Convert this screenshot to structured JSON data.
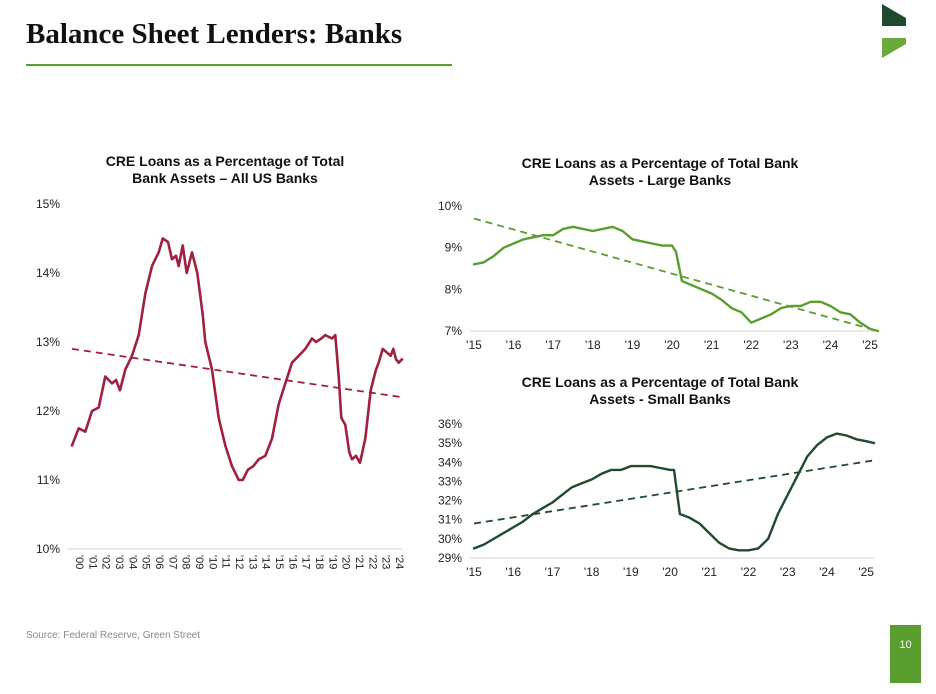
{
  "header": {
    "title": "Balance Sheet Lenders: Banks"
  },
  "colors": {
    "accent_green": "#5a9e2f",
    "logo_dark": "#1f4a2e",
    "logo_light": "#6aaa3a",
    "all_banks_line": "#a0203f",
    "large_banks_line": "#5a9e2f",
    "small_banks_line": "#1f4a2e"
  },
  "footer": {
    "source": "Source: Federal Reserve, Green Street",
    "page_number": "10"
  },
  "chart_data": [
    {
      "id": "all",
      "type": "line",
      "title_line1": "CRE Loans as a Percentage of Total",
      "title_line2": "Bank Assets – All US Banks",
      "xlabel": "",
      "ylabel": "",
      "xlim": [
        2000,
        2024.75
      ],
      "ylim": [
        10,
        15
      ],
      "y_ticks": [
        10,
        11,
        12,
        13,
        14,
        15
      ],
      "y_tick_labels": [
        "10%",
        "11%",
        "12%",
        "13%",
        "14%",
        "15%"
      ],
      "x_ticks": [
        2000,
        2001,
        2002,
        2003,
        2004,
        2005,
        2006,
        2007,
        2008,
        2009,
        2010,
        2011,
        2012,
        2013,
        2014,
        2015,
        2016,
        2017,
        2018,
        2019,
        2020,
        2021,
        2022,
        2023,
        2024
      ],
      "x_tick_labels": [
        "'00",
        "'01",
        "'02",
        "'03",
        "'04",
        "'05",
        "'06",
        "'07",
        "'08",
        "'09",
        "'10",
        "'11",
        "'12",
        "'13",
        "'14",
        "'15",
        "'16",
        "'17",
        "'18",
        "'19",
        "'20",
        "'21",
        "'22",
        "'23",
        "'24"
      ],
      "grid": false,
      "x_label_rotation": "vertical",
      "series": [
        {
          "name": "All US Banks",
          "color": "#a0203f",
          "x": [
            2000,
            2000.5,
            2001,
            2001.5,
            2002,
            2002.5,
            2003,
            2003.3,
            2003.6,
            2004,
            2004.5,
            2005,
            2005.5,
            2006,
            2006.5,
            2006.8,
            2007.2,
            2007.5,
            2007.8,
            2008,
            2008.3,
            2008.6,
            2009,
            2009.4,
            2009.8,
            2010,
            2010.5,
            2011,
            2011.5,
            2012,
            2012.5,
            2012.8,
            2013.2,
            2013.6,
            2014,
            2014.5,
            2015,
            2015.5,
            2016,
            2016.5,
            2017,
            2017.5,
            2018,
            2018.3,
            2018.7,
            2019,
            2019.5,
            2019.75,
            2020,
            2020.2,
            2020.5,
            2020.8,
            2021,
            2021.3,
            2021.6,
            2022,
            2022.4,
            2022.8,
            2023,
            2023.3,
            2023.6,
            2023.9,
            2024.1,
            2024.3,
            2024.5,
            2024.75
          ],
          "y": [
            11.5,
            11.75,
            11.7,
            12.0,
            12.05,
            12.5,
            12.4,
            12.45,
            12.3,
            12.6,
            12.8,
            13.1,
            13.7,
            14.1,
            14.3,
            14.5,
            14.45,
            14.2,
            14.25,
            14.1,
            14.4,
            14.0,
            14.3,
            14.0,
            13.4,
            13.0,
            12.6,
            11.9,
            11.5,
            11.2,
            11.0,
            11.0,
            11.15,
            11.2,
            11.3,
            11.35,
            11.6,
            12.1,
            12.4,
            12.7,
            12.8,
            12.9,
            13.05,
            13.0,
            13.05,
            13.1,
            13.05,
            13.1,
            12.5,
            11.9,
            11.8,
            11.4,
            11.3,
            11.35,
            11.25,
            11.6,
            12.3,
            12.6,
            12.7,
            12.9,
            12.85,
            12.8,
            12.9,
            12.75,
            12.7,
            12.75
          ]
        }
      ],
      "trendline": {
        "from": [
          2000,
          12.9
        ],
        "to": [
          2024.75,
          12.2
        ],
        "style": "dashed"
      }
    },
    {
      "id": "large",
      "type": "line",
      "title_line1": "CRE Loans as a Percentage of Total Bank",
      "title_line2": "Assets - Large Banks",
      "xlabel": "",
      "ylabel": "",
      "xlim": [
        2015,
        2025.2
      ],
      "ylim": [
        7,
        10
      ],
      "y_ticks": [
        7,
        8,
        9,
        10
      ],
      "y_tick_labels": [
        "7%",
        "8%",
        "9%",
        "10%"
      ],
      "x_ticks": [
        2015,
        2016,
        2017,
        2018,
        2019,
        2020,
        2021,
        2022,
        2023,
        2024,
        2025
      ],
      "x_tick_labels": [
        "'15",
        "'16",
        "'17",
        "'18",
        "'19",
        "'20",
        "'21",
        "'22",
        "'23",
        "'24",
        "'25"
      ],
      "grid": false,
      "series": [
        {
          "name": "Large Banks",
          "color": "#5a9e2f",
          "x": [
            2015,
            2015.25,
            2015.5,
            2015.75,
            2016,
            2016.25,
            2016.5,
            2016.75,
            2017,
            2017.25,
            2017.5,
            2017.75,
            2018,
            2018.25,
            2018.5,
            2018.75,
            2019,
            2019.25,
            2019.5,
            2019.75,
            2020,
            2020.1,
            2020.25,
            2020.5,
            2020.75,
            2021,
            2021.25,
            2021.5,
            2021.75,
            2022,
            2022.25,
            2022.5,
            2022.75,
            2023,
            2023.25,
            2023.5,
            2023.75,
            2024,
            2024.25,
            2024.5,
            2024.75,
            2025,
            2025.2
          ],
          "y": [
            8.6,
            8.65,
            8.8,
            9.0,
            9.1,
            9.2,
            9.25,
            9.3,
            9.3,
            9.45,
            9.5,
            9.45,
            9.4,
            9.45,
            9.5,
            9.4,
            9.2,
            9.15,
            9.1,
            9.05,
            9.05,
            8.9,
            8.2,
            8.1,
            8.0,
            7.9,
            7.75,
            7.55,
            7.45,
            7.2,
            7.3,
            7.4,
            7.55,
            7.6,
            7.6,
            7.7,
            7.7,
            7.6,
            7.45,
            7.4,
            7.2,
            7.05,
            7.0
          ]
        }
      ],
      "trendline": {
        "from": [
          2015,
          9.7
        ],
        "to": [
          2025.2,
          7.0
        ],
        "style": "dashed"
      }
    },
    {
      "id": "small",
      "type": "line",
      "title_line1": "CRE Loans as a Percentage of Total Bank",
      "title_line2": "Assets - Small Banks",
      "xlabel": "",
      "ylabel": "",
      "xlim": [
        2015,
        2025.2
      ],
      "ylim": [
        29,
        36
      ],
      "y_ticks": [
        29,
        30,
        31,
        32,
        33,
        34,
        35,
        36
      ],
      "y_tick_labels": [
        "29%",
        "30%",
        "31%",
        "32%",
        "33%",
        "34%",
        "35%",
        "36%"
      ],
      "x_ticks": [
        2015,
        2016,
        2017,
        2018,
        2019,
        2020,
        2021,
        2022,
        2023,
        2024,
        2025
      ],
      "x_tick_labels": [
        "'15",
        "'16",
        "'17",
        "'18",
        "'19",
        "'20",
        "'21",
        "'22",
        "'23",
        "'24",
        "'25"
      ],
      "grid": false,
      "series": [
        {
          "name": "Small Banks",
          "color": "#1f4a2e",
          "x": [
            2015,
            2015.25,
            2015.5,
            2015.75,
            2016,
            2016.25,
            2016.5,
            2016.75,
            2017,
            2017.25,
            2017.5,
            2017.75,
            2018,
            2018.25,
            2018.5,
            2018.75,
            2019,
            2019.25,
            2019.5,
            2019.75,
            2020,
            2020.1,
            2020.25,
            2020.5,
            2020.75,
            2021,
            2021.25,
            2021.5,
            2021.75,
            2022,
            2022.25,
            2022.5,
            2022.75,
            2023,
            2023.25,
            2023.5,
            2023.75,
            2024,
            2024.25,
            2024.5,
            2024.75,
            2025,
            2025.2
          ],
          "y": [
            29.5,
            29.7,
            30.0,
            30.3,
            30.6,
            30.9,
            31.3,
            31.6,
            31.9,
            32.3,
            32.7,
            32.9,
            33.1,
            33.4,
            33.6,
            33.6,
            33.8,
            33.8,
            33.8,
            33.7,
            33.6,
            33.6,
            31.3,
            31.1,
            30.8,
            30.3,
            29.8,
            29.5,
            29.4,
            29.4,
            29.5,
            30.0,
            31.3,
            32.3,
            33.3,
            34.3,
            34.9,
            35.3,
            35.5,
            35.4,
            35.2,
            35.1,
            35.0
          ]
        }
      ],
      "trendline": {
        "from": [
          2015,
          30.8
        ],
        "to": [
          2025.2,
          34.1
        ],
        "style": "dashed"
      }
    }
  ]
}
